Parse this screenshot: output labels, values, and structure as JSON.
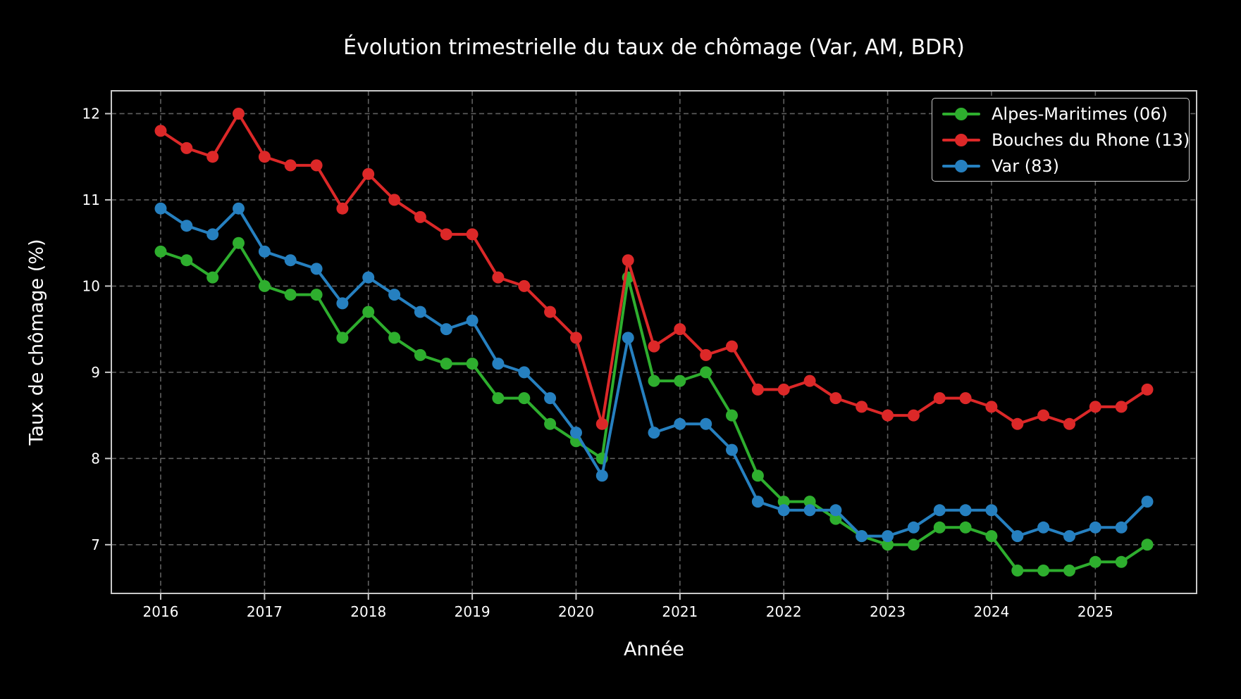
{
  "figure": {
    "background": "#000000",
    "text_color": "#ffffff",
    "axis_color": "#c9c9c9",
    "grid_color": "#606060"
  },
  "chart_data": {
    "type": "line",
    "title": "Évolution trimestrielle du taux de chômage (Var, AM, BDR)",
    "xlabel": "Année",
    "ylabel": "Taux de chômage (%)",
    "grid": true,
    "legend_position": "upper right",
    "x_start": 2016.0,
    "x_step": 0.25,
    "x_unit": "quarter",
    "xlim": [
      2015.525,
      2025.975
    ],
    "ylim": [
      6.435,
      12.265
    ],
    "x_tick_labels": [
      "2016",
      "2017",
      "2018",
      "2019",
      "2020",
      "2021",
      "2022",
      "2023",
      "2024",
      "2025"
    ],
    "y_tick_labels": [
      "7",
      "8",
      "9",
      "10",
      "11",
      "12"
    ],
    "series": [
      {
        "name": "Alpes-Maritimes (06)",
        "color": "#2eae2e",
        "values": [
          10.4,
          10.3,
          10.1,
          10.5,
          10.0,
          9.9,
          9.9,
          9.4,
          9.7,
          9.4,
          9.2,
          9.1,
          9.1,
          8.7,
          8.7,
          8.4,
          8.2,
          8.0,
          10.1,
          8.9,
          8.9,
          9.0,
          8.5,
          7.8,
          7.5,
          7.5,
          7.3,
          7.1,
          7.0,
          7.0,
          7.2,
          7.2,
          7.1,
          6.7,
          6.7,
          6.7,
          6.8,
          6.8,
          7.0
        ]
      },
      {
        "name": "Bouches du Rhone (13)",
        "color": "#dc2828",
        "values": [
          11.8,
          11.6,
          11.5,
          12.0,
          11.5,
          11.4,
          11.4,
          10.9,
          11.3,
          11.0,
          10.8,
          10.6,
          10.6,
          10.1,
          10.0,
          9.7,
          9.4,
          8.4,
          10.3,
          9.3,
          9.5,
          9.2,
          9.3,
          8.8,
          8.8,
          8.9,
          8.7,
          8.6,
          8.5,
          8.5,
          8.7,
          8.7,
          8.6,
          8.4,
          8.5,
          8.4,
          8.6,
          8.6,
          8.8
        ]
      },
      {
        "name": "Var (83)",
        "color": "#2680c0",
        "values": [
          10.9,
          10.7,
          10.6,
          10.9,
          10.4,
          10.3,
          10.2,
          9.8,
          10.1,
          9.9,
          9.7,
          9.5,
          9.6,
          9.1,
          9.0,
          8.7,
          8.3,
          7.8,
          9.4,
          8.3,
          8.4,
          8.4,
          8.1,
          7.5,
          7.4,
          7.4,
          7.4,
          7.1,
          7.1,
          7.2,
          7.4,
          7.4,
          7.4,
          7.1,
          7.2,
          7.1,
          7.2,
          7.2,
          7.5
        ]
      }
    ]
  }
}
